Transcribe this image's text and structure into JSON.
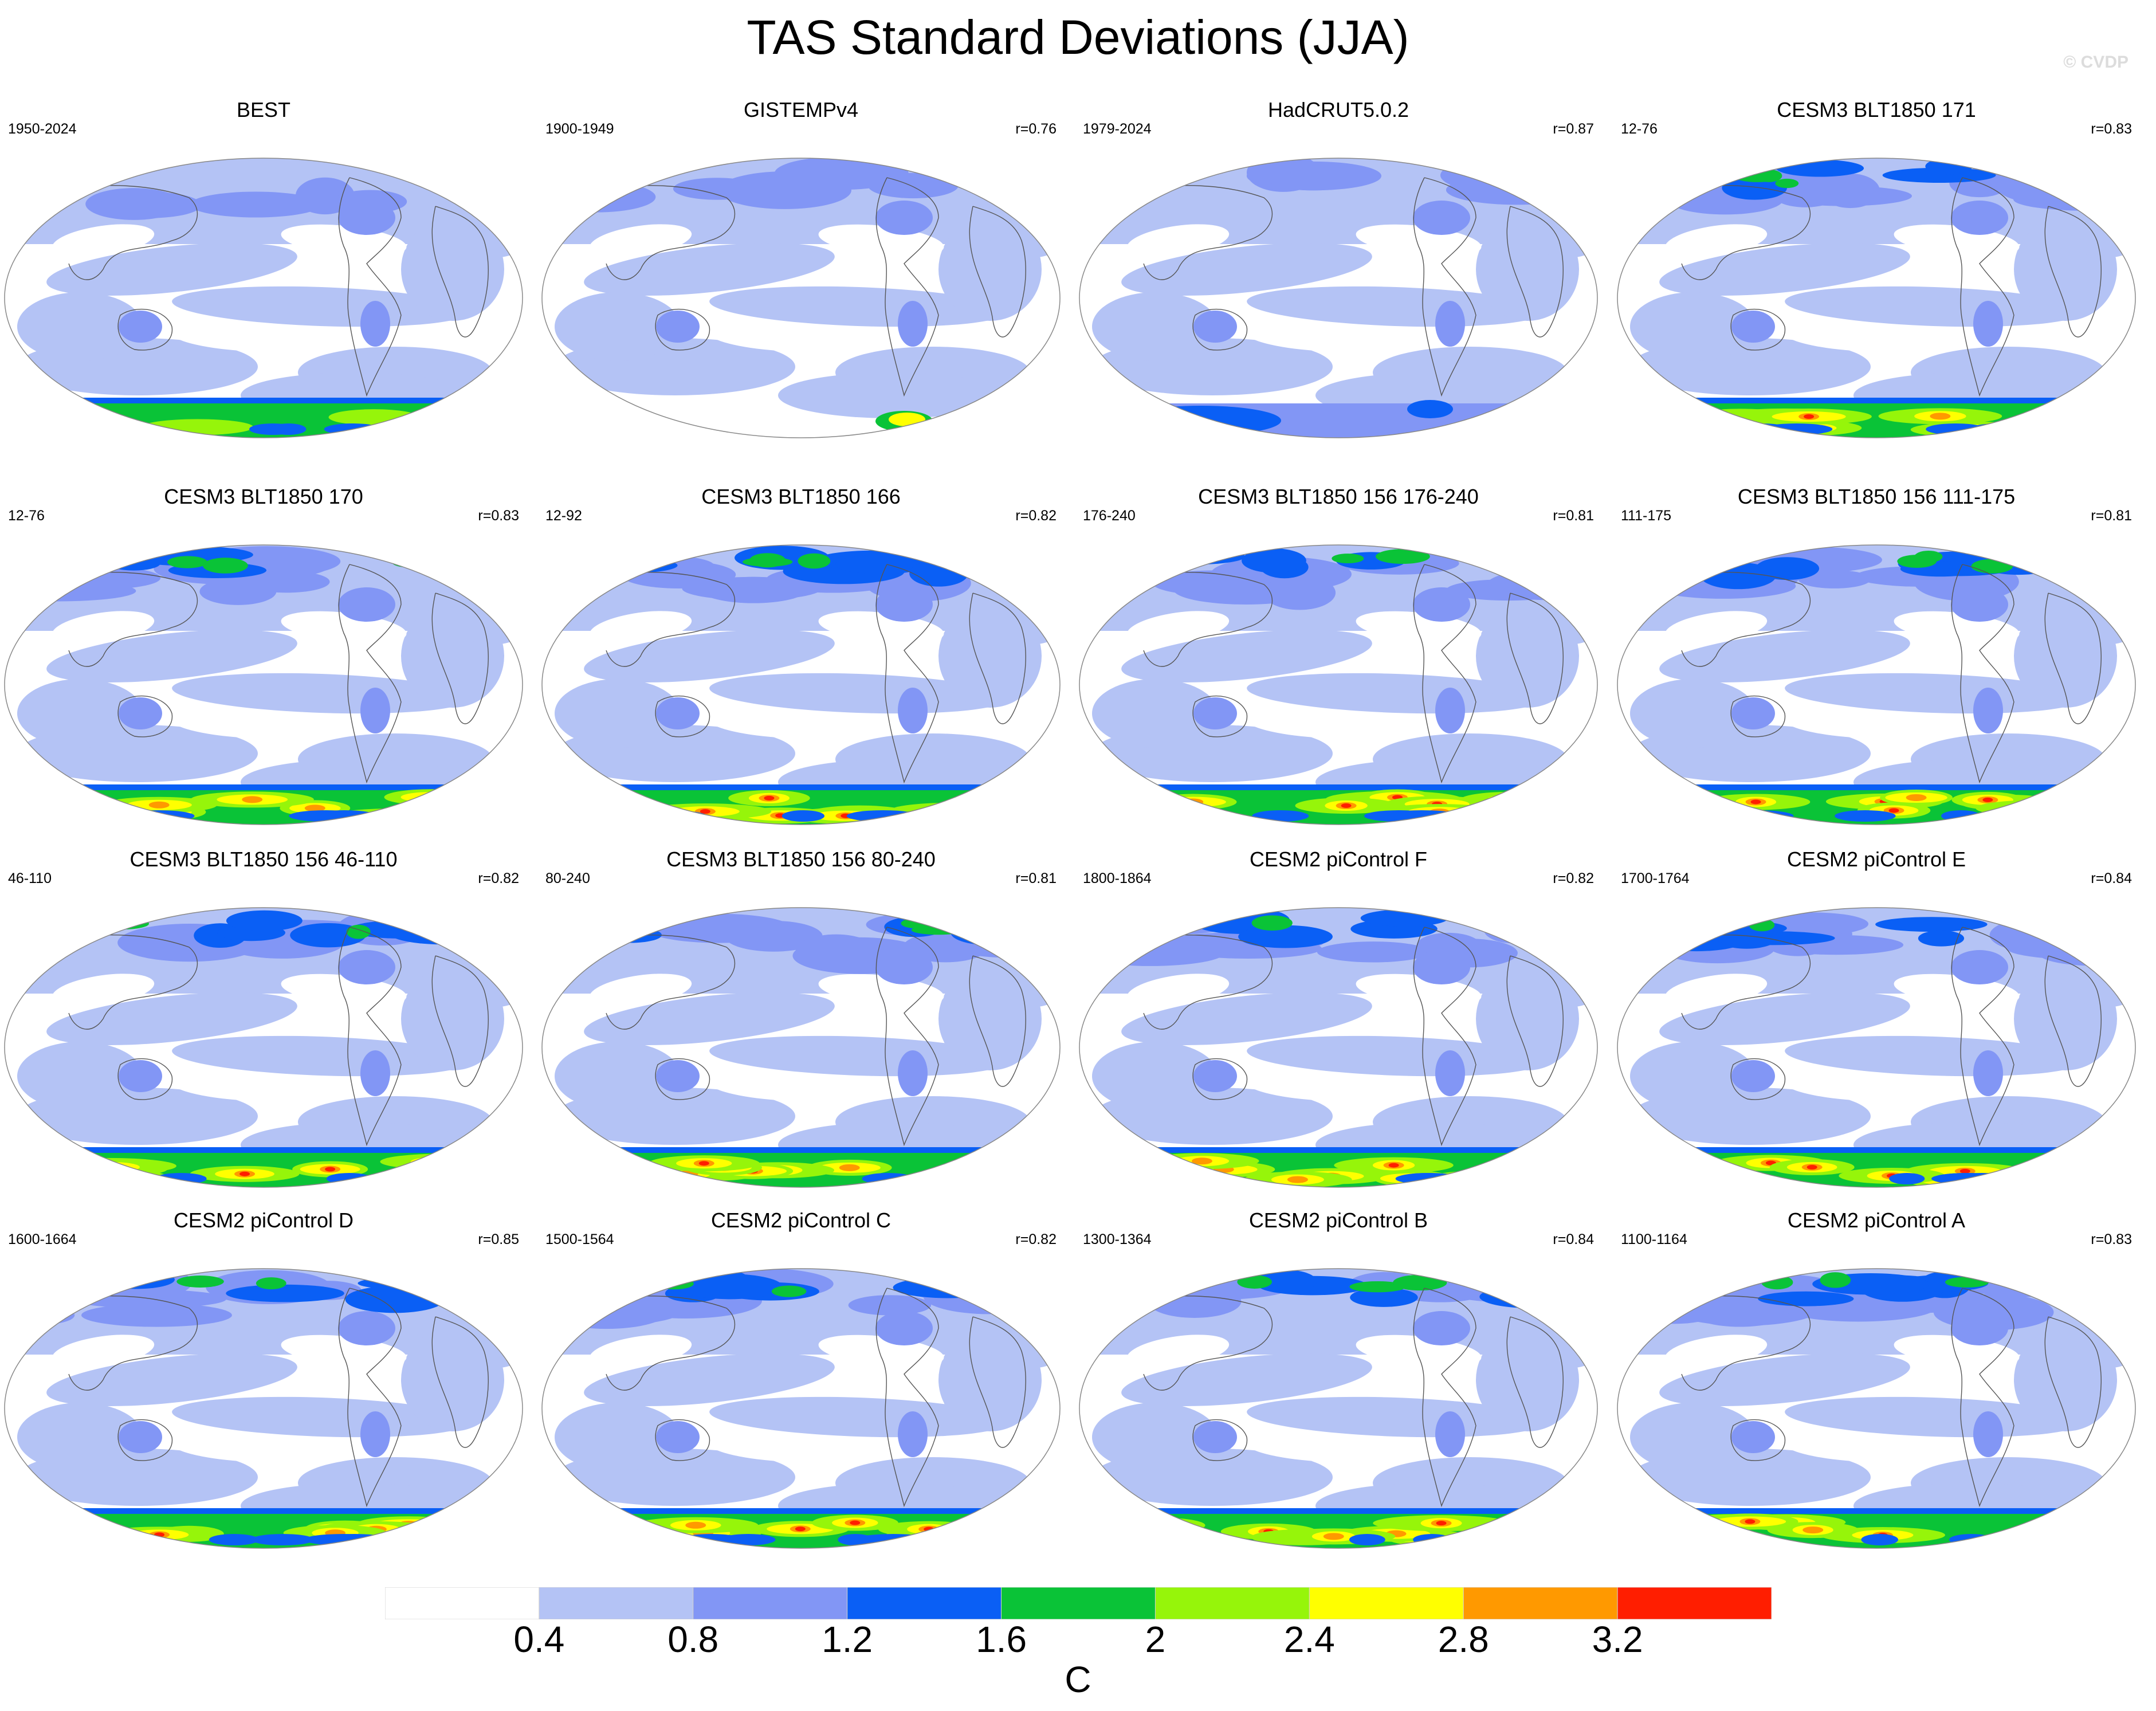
{
  "title": "TAS Standard Deviations (JJA)",
  "watermark": "© CVDP",
  "chart_data": {
    "type": "map-panels",
    "title": "TAS Standard Deviations (JJA)",
    "projection": "Robinson (global)",
    "panels": [
      {
        "title": "BEST",
        "years": "1950-2024",
        "r": ""
      },
      {
        "title": "GISTEMPv4",
        "years": "1900-1949",
        "r": "r=0.76"
      },
      {
        "title": "HadCRUT5.0.2",
        "years": "1979-2024",
        "r": "r=0.87"
      },
      {
        "title": "CESM3 BLT1850 171",
        "years": "12-76",
        "r": "r=0.83"
      },
      {
        "title": "CESM3 BLT1850 170",
        "years": "12-76",
        "r": "r=0.83"
      },
      {
        "title": "CESM3 BLT1850 166",
        "years": "12-92",
        "r": "r=0.82"
      },
      {
        "title": "CESM3 BLT1850 156 176-240",
        "years": "176-240",
        "r": "r=0.81"
      },
      {
        "title": "CESM3 BLT1850 156 111-175",
        "years": "111-175",
        "r": "r=0.81"
      },
      {
        "title": "CESM3 BLT1850 156 46-110",
        "years": "46-110",
        "r": "r=0.82"
      },
      {
        "title": "CESM3 BLT1850 156 80-240",
        "years": "80-240",
        "r": "r=0.81"
      },
      {
        "title": "CESM2 piControl F",
        "years": "1800-1864",
        "r": "r=0.82"
      },
      {
        "title": "CESM2 piControl E",
        "years": "1700-1764",
        "r": "r=0.84"
      },
      {
        "title": "CESM2 piControl D",
        "years": "1600-1664",
        "r": "r=0.85"
      },
      {
        "title": "CESM2 piControl C",
        "years": "1500-1564",
        "r": "r=0.82"
      },
      {
        "title": "CESM2 piControl B",
        "years": "1300-1364",
        "r": "r=0.84"
      },
      {
        "title": "CESM2 piControl A",
        "years": "1100-1164",
        "r": "r=0.83"
      }
    ],
    "colorbar": {
      "levels": [
        "0.4",
        "0.8",
        "1.2",
        "1.6",
        "2",
        "2.4",
        "2.8",
        "3.2"
      ],
      "colors": [
        "#ffffff",
        "#b4c3f5",
        "#8296f5",
        "#0a5ff5",
        "#0ac337",
        "#96f50a",
        "#ffff00",
        "#ff9900",
        "#ff1e00"
      ],
      "units": "C"
    }
  }
}
